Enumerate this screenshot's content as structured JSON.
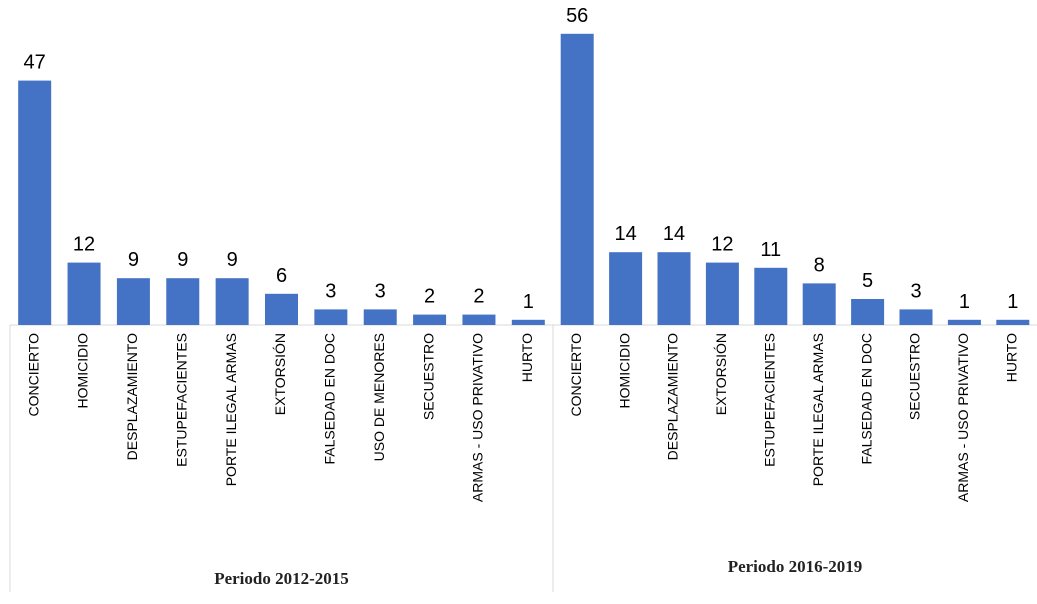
{
  "chart_data": [
    {
      "type": "bar",
      "title": "Periodo 2012-2015",
      "color": "#4472c4",
      "categories": [
        "CONCIERTO",
        "HOMICIDIO",
        "DESPLAZAMIENTO",
        "ESTUPEFACIENTES",
        "PORTE ILEGAL ARMAS",
        "EXTORSIÓN",
        "FALSEDAD EN DOC",
        "USO DE MENORES",
        "SECUESTRO",
        "ARMAS - USO PRIVATIVO",
        "HURTO"
      ],
      "values": [
        47,
        12,
        9,
        9,
        9,
        6,
        3,
        3,
        2,
        2,
        1
      ]
    },
    {
      "type": "bar",
      "title": "Periodo 2016-2019",
      "color": "#4472c4",
      "categories": [
        "CONCIERTO",
        "HOMICIDIO",
        "DESPLAZAMIENTO",
        "EXTORSIÓN",
        "ESTUPEFACIENTES",
        "PORTE ILEGAL ARMAS",
        "FALSEDAD EN DOC",
        "SECUESTRO",
        "ARMAS - USO PRIVATIVO",
        "HURTO"
      ],
      "values": [
        56,
        14,
        14,
        12,
        11,
        8,
        5,
        3,
        1,
        1
      ]
    }
  ]
}
